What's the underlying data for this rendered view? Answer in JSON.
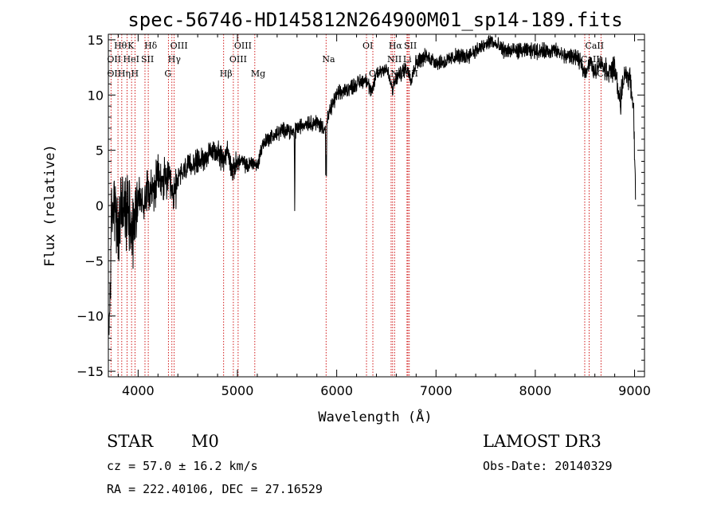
{
  "chart_data": {
    "type": "line",
    "title": "spec-56746-HD145812N264900M01_sp14-189.fits",
    "xlabel": "Wavelength (Å)",
    "ylabel": "Flux (relative)",
    "xlim": [
      3700,
      9100
    ],
    "ylim": [
      -15.5,
      15.5
    ],
    "xticks": [
      4000,
      5000,
      6000,
      7000,
      8000,
      9000
    ],
    "yticks": [
      -15,
      -10,
      -5,
      0,
      5,
      10,
      15
    ],
    "grid": false,
    "series": [
      {
        "name": "flux",
        "anchors": [
          [
            3705,
            -12.5
          ],
          [
            3730,
            -2.0
          ],
          [
            3760,
            1.0
          ],
          [
            3800,
            -3.5
          ],
          [
            3830,
            0.5
          ],
          [
            3870,
            -1.0
          ],
          [
            3900,
            0.0
          ],
          [
            3950,
            -2.0
          ],
          [
            4000,
            1.0
          ],
          [
            4050,
            0.0
          ],
          [
            4100,
            2.0
          ],
          [
            4150,
            1.0
          ],
          [
            4200,
            2.5
          ],
          [
            4250,
            2.0
          ],
          [
            4300,
            2.5
          ],
          [
            4350,
            0.5
          ],
          [
            4400,
            2.5
          ],
          [
            4500,
            3.5
          ],
          [
            4600,
            4.0
          ],
          [
            4700,
            4.5
          ],
          [
            4800,
            5.0
          ],
          [
            4850,
            4.0
          ],
          [
            4900,
            5.0
          ],
          [
            4950,
            3.0
          ],
          [
            5000,
            4.0
          ],
          [
            5050,
            4.0
          ],
          [
            5100,
            3.5
          ],
          [
            5150,
            4.0
          ],
          [
            5200,
            3.5
          ],
          [
            5250,
            5.5
          ],
          [
            5300,
            6.0
          ],
          [
            5400,
            6.5
          ],
          [
            5500,
            7.0
          ],
          [
            5560,
            6.5
          ],
          [
            5600,
            7.0
          ],
          [
            5700,
            7.5
          ],
          [
            5800,
            7.5
          ],
          [
            5880,
            7.0
          ],
          [
            5950,
            9.0
          ],
          [
            6000,
            10.0
          ],
          [
            6100,
            10.5
          ],
          [
            6200,
            11.0
          ],
          [
            6300,
            11.5
          ],
          [
            6350,
            10.0
          ],
          [
            6400,
            12.0
          ],
          [
            6500,
            12.5
          ],
          [
            6560,
            10.5
          ],
          [
            6600,
            11.5
          ],
          [
            6700,
            12.5
          ],
          [
            6750,
            11.5
          ],
          [
            6800,
            13.0
          ],
          [
            6900,
            13.5
          ],
          [
            7000,
            13.0
          ],
          [
            7100,
            13.0
          ],
          [
            7200,
            13.5
          ],
          [
            7300,
            13.5
          ],
          [
            7400,
            14.0
          ],
          [
            7500,
            14.5
          ],
          [
            7550,
            15.0
          ],
          [
            7600,
            14.5
          ],
          [
            7700,
            14.0
          ],
          [
            7800,
            14.0
          ],
          [
            7900,
            14.0
          ],
          [
            8000,
            14.0
          ],
          [
            8100,
            14.0
          ],
          [
            8200,
            14.0
          ],
          [
            8300,
            13.5
          ],
          [
            8400,
            13.5
          ],
          [
            8450,
            13.0
          ],
          [
            8500,
            12.0
          ],
          [
            8550,
            13.0
          ],
          [
            8600,
            12.0
          ],
          [
            8650,
            13.0
          ],
          [
            8700,
            12.5
          ],
          [
            8750,
            12.0
          ],
          [
            8800,
            12.5
          ],
          [
            8850,
            9.5
          ],
          [
            8900,
            12.0
          ],
          [
            8950,
            11.5
          ],
          [
            8990,
            9.0
          ],
          [
            9010,
            0.5
          ]
        ],
        "features": [
          [
            5577,
            -0.5,
            6.5,
            10
          ],
          [
            5890,
            1.3,
            7.0,
            8
          ],
          [
            5896,
            1.0,
            7.0,
            8
          ],
          [
            8860,
            8.0,
            12.5,
            12
          ]
        ]
      }
    ],
    "lines": [
      {
        "name": "Hθ",
        "wave": 3797,
        "row": 1
      },
      {
        "name": "OII",
        "wave": 3727,
        "row": 2
      },
      {
        "name": "OII",
        "wave": 3727,
        "row": 3
      },
      {
        "name": "K",
        "wave": 3934,
        "row": 1
      },
      {
        "name": "HeI",
        "wave": 3889,
        "row": 2
      },
      {
        "name": "Hη",
        "wave": 3835,
        "row": 3
      },
      {
        "name": "Hδ",
        "wave": 4102,
        "row": 1
      },
      {
        "name": "SII",
        "wave": 4069,
        "row": 2
      },
      {
        "name": "H",
        "wave": 3969,
        "row": 3
      },
      {
        "name": "OIII",
        "wave": 4363,
        "row": 1
      },
      {
        "name": "Hγ",
        "wave": 4340,
        "row": 2
      },
      {
        "name": "G",
        "wave": 4305,
        "row": 3
      },
      {
        "name": "Hβ",
        "wave": 4861,
        "row": 3
      },
      {
        "name": "OIII",
        "wave": 5007,
        "row": 1
      },
      {
        "name": "OIII",
        "wave": 4959,
        "row": 2
      },
      {
        "name": "Mg",
        "wave": 5175,
        "row": 3
      },
      {
        "name": "Na",
        "wave": 5893,
        "row": 2
      },
      {
        "name": "OI",
        "wave": 6300,
        "row": 1
      },
      {
        "name": "OI",
        "wave": 6364,
        "row": 3
      },
      {
        "name": "Hα",
        "wave": 6563,
        "row": 1
      },
      {
        "name": "NII",
        "wave": 6548,
        "row": 2
      },
      {
        "name": "NII",
        "wave": 6583,
        "row": 3
      },
      {
        "name": "SII",
        "wave": 6717,
        "row": 1
      },
      {
        "name": "Li",
        "wave": 6708,
        "row": 2
      },
      {
        "name": "SII",
        "wave": 6731,
        "row": 3
      },
      {
        "name": "CaII",
        "wave": 8542,
        "row": 1
      },
      {
        "name": "CaII",
        "wave": 8498,
        "row": 2
      },
      {
        "name": "CaII",
        "wave": 8662,
        "row": 3
      }
    ]
  },
  "info": {
    "object_class": "STAR",
    "subclass": "M0",
    "cz": "cz = 57.0 ± 16.2 km/s",
    "coords": "RA = 222.40106, DEC =  27.16529",
    "survey": "LAMOST DR3",
    "obs_date": "Obs-Date: 20140329"
  }
}
